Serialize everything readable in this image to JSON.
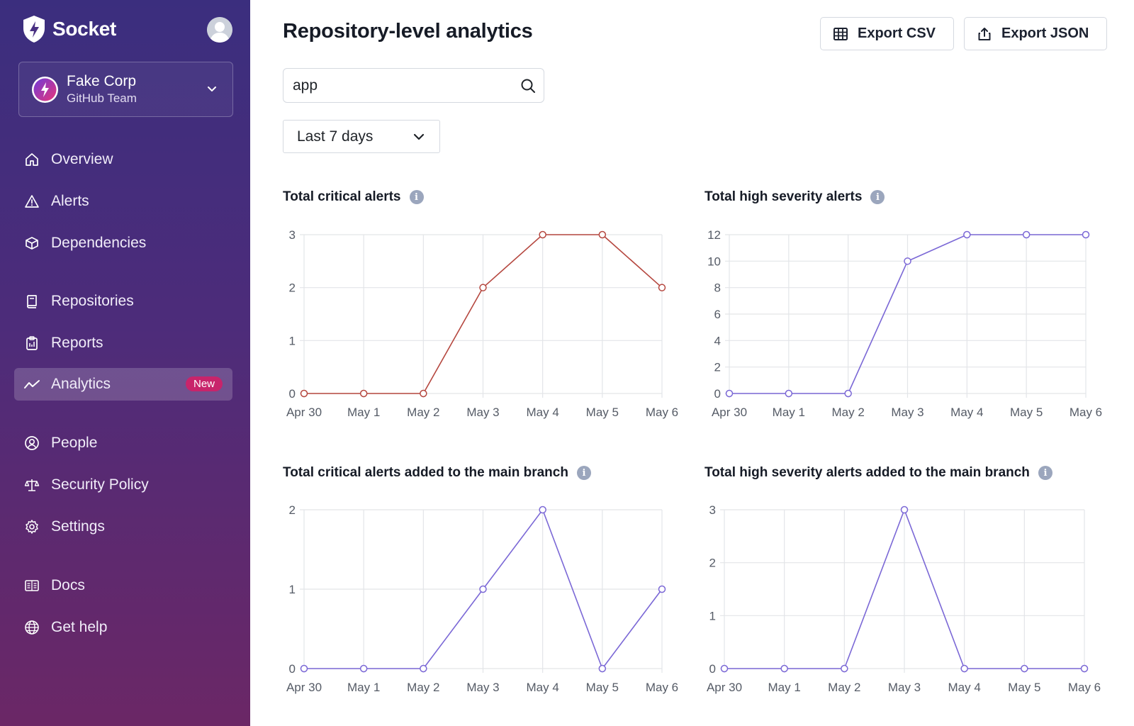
{
  "brand": {
    "name": "Socket"
  },
  "org": {
    "name": "Fake Corp",
    "subtitle": "GitHub Team"
  },
  "nav": {
    "items": [
      {
        "label": "Overview",
        "icon": "home-icon"
      },
      {
        "label": "Alerts",
        "icon": "warning-icon"
      },
      {
        "label": "Dependencies",
        "icon": "package-icon"
      },
      {
        "label": "Repositories",
        "icon": "repo-icon"
      },
      {
        "label": "Reports",
        "icon": "clipboard-icon"
      },
      {
        "label": "Analytics",
        "icon": "analytics-icon",
        "badge": "New",
        "active": true
      },
      {
        "label": "People",
        "icon": "person-icon"
      },
      {
        "label": "Security Policy",
        "icon": "scale-icon"
      },
      {
        "label": "Settings",
        "icon": "gear-icon"
      },
      {
        "label": "Docs",
        "icon": "book-icon"
      },
      {
        "label": "Get help",
        "icon": "globe-icon"
      }
    ]
  },
  "header": {
    "title": "Repository-level analytics",
    "export_csv": "Export CSV",
    "export_json": "Export JSON"
  },
  "filters": {
    "search_value": "app",
    "range": "Last 7 days"
  },
  "colors": {
    "critical": "#b5473f",
    "high": "#7b68d6",
    "accent_badge": "#c8246b"
  },
  "chart_data": [
    {
      "type": "line",
      "title": "Total critical alerts",
      "categories": [
        "Apr 30",
        "May 1",
        "May 2",
        "May 3",
        "May 4",
        "May 5",
        "May 6"
      ],
      "series": [
        {
          "values": [
            0,
            0,
            0,
            2,
            3,
            3,
            2
          ],
          "color": "#b5473f"
        }
      ],
      "ylim": [
        0,
        3
      ],
      "yticks": [
        0,
        1,
        2,
        3
      ],
      "grid": true
    },
    {
      "type": "line",
      "title": "Total high severity alerts",
      "categories": [
        "Apr 30",
        "May 1",
        "May 2",
        "May 3",
        "May 4",
        "May 5",
        "May 6"
      ],
      "series": [
        {
          "values": [
            0,
            0,
            0,
            10,
            12,
            12,
            12
          ],
          "color": "#7b68d6"
        }
      ],
      "ylim": [
        0,
        12
      ],
      "yticks": [
        0,
        2,
        4,
        6,
        8,
        10,
        12
      ],
      "grid": true
    },
    {
      "type": "line",
      "title": "Total critical alerts added to the main branch",
      "categories": [
        "Apr 30",
        "May 1",
        "May 2",
        "May 3",
        "May 4",
        "May 5",
        "May 6"
      ],
      "series": [
        {
          "values": [
            0,
            0,
            0,
            1,
            2,
            0,
            1
          ],
          "color": "#7b68d6"
        }
      ],
      "ylim": [
        0,
        2
      ],
      "yticks": [
        0,
        1,
        2
      ],
      "grid": true
    },
    {
      "type": "line",
      "title": "Total high severity alerts added to the main branch",
      "categories": [
        "Apr 30",
        "May 1",
        "May 2",
        "May 3",
        "May 4",
        "May 5",
        "May 6"
      ],
      "series": [
        {
          "values": [
            0,
            0,
            0,
            3,
            0,
            0,
            0
          ],
          "color": "#7b68d6"
        }
      ],
      "ylim": [
        0,
        3
      ],
      "yticks": [
        0,
        1,
        2,
        3
      ],
      "grid": true
    }
  ]
}
